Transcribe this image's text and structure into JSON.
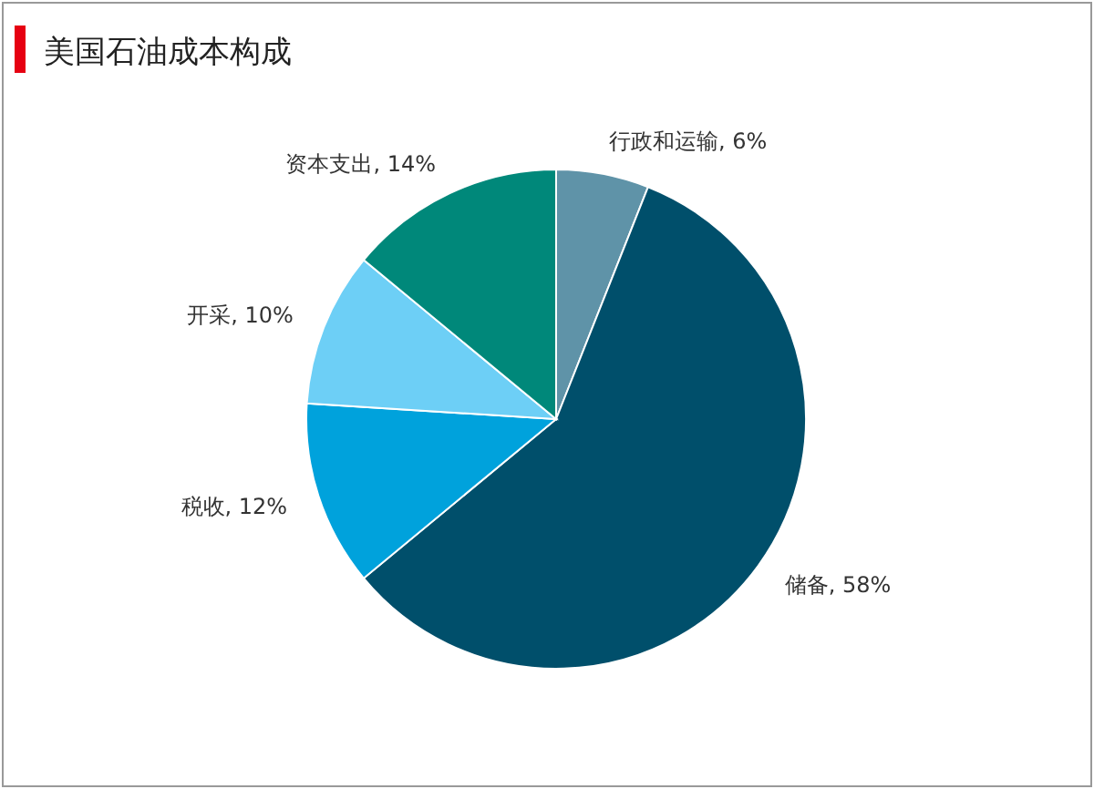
{
  "chart_data": {
    "type": "pie",
    "title": "美国石油成本构成",
    "categories": [
      "行政和运输",
      "储备",
      "税收",
      "开采",
      "资本支出"
    ],
    "values": [
      6,
      58,
      12,
      10,
      14
    ],
    "colors": [
      "#5f93a8",
      "#004f6b",
      "#00a2dc",
      "#6dcff6",
      "#00887a"
    ],
    "value_labels": [
      ", 6%",
      ", 58%",
      ", 12%",
      ", 10%",
      ", 14%"
    ]
  }
}
